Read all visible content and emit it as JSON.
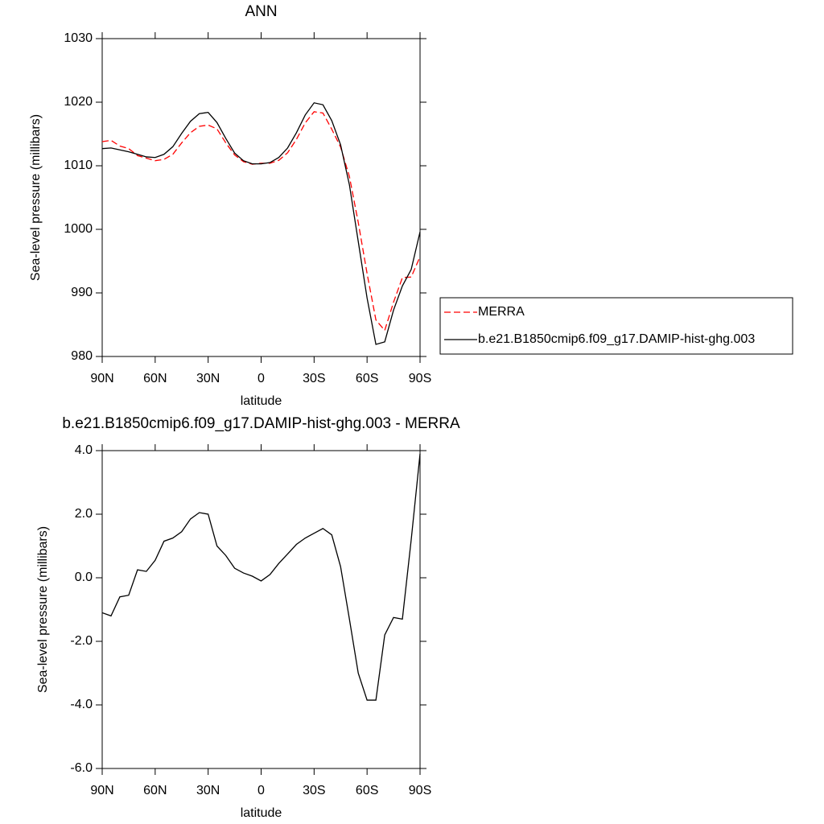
{
  "chart_data": [
    {
      "type": "line",
      "title": "ANN",
      "xlabel": "latitude",
      "ylabel": "Sea-level pressure (millibars)",
      "x": [
        90,
        85,
        80,
        75,
        70,
        65,
        60,
        55,
        50,
        45,
        40,
        35,
        30,
        25,
        20,
        15,
        10,
        5,
        0,
        -5,
        -10,
        -15,
        -20,
        -25,
        -30,
        -35,
        -40,
        -45,
        -50,
        -55,
        -60,
        -65,
        -70,
        -75,
        -80,
        -85,
        -90
      ],
      "xlim": [
        90,
        -90
      ],
      "xticks": [
        {
          "value": 90,
          "label": "90N"
        },
        {
          "value": 60,
          "label": "60N"
        },
        {
          "value": 30,
          "label": "30N"
        },
        0,
        {
          "value": -30,
          "label": "30S"
        },
        {
          "value": -60,
          "label": "60S"
        },
        {
          "value": -90,
          "label": "90S"
        }
      ],
      "ylim": [
        980,
        1030
      ],
      "yticks": [
        980,
        990,
        1000,
        1010,
        1020,
        1030
      ],
      "legend": "right",
      "series": [
        {
          "name": "MERRA",
          "color": "#ff0000",
          "line_style": "dashed",
          "values": [
            1013.8,
            1014.0,
            1013.1,
            1012.7,
            1011.6,
            1011.2,
            1010.8,
            1011.0,
            1011.8,
            1013.6,
            1015.2,
            1016.2,
            1016.4,
            1015.8,
            1013.6,
            1011.7,
            1010.65,
            1010.25,
            1010.4,
            1010.4,
            1010.85,
            1012.05,
            1014.15,
            1016.75,
            1018.5,
            1018.3,
            1015.75,
            1012.95,
            1008.3,
            1001.1,
            993.05,
            985.75,
            984.1,
            988.55,
            992.4,
            992.5,
            995.7
          ]
        },
        {
          "name": "b.e21.B1850cmip6.f09_g17.DAMIP-hist-ghg.003",
          "color": "#000000",
          "line_style": "solid",
          "values": [
            1012.7,
            1012.8,
            1012.5,
            1012.2,
            1011.8,
            1011.4,
            1011.3,
            1011.8,
            1013.0,
            1015.1,
            1017.0,
            1018.2,
            1018.4,
            1016.8,
            1014.3,
            1012.0,
            1010.8,
            1010.3,
            1010.3,
            1010.5,
            1011.3,
            1012.8,
            1015.2,
            1018.0,
            1019.9,
            1019.6,
            1017.1,
            1013.3,
            1007.0,
            998.1,
            989.2,
            981.9,
            982.3,
            987.3,
            991.1,
            993.7,
            999.6
          ]
        }
      ]
    },
    {
      "type": "line",
      "title": "b.e21.B1850cmip6.f09_g17.DAMIP-hist-ghg.003 - MERRA",
      "xlabel": "latitude",
      "ylabel": "Sea-level pressure (millibars)",
      "x": [
        90,
        85,
        80,
        75,
        70,
        65,
        60,
        55,
        50,
        45,
        40,
        35,
        30,
        25,
        20,
        15,
        10,
        5,
        0,
        -5,
        -10,
        -15,
        -20,
        -25,
        -30,
        -35,
        -40,
        -45,
        -50,
        -55,
        -60,
        -65,
        -70,
        -75,
        -80,
        -85,
        -90
      ],
      "xlim": [
        90,
        -90
      ],
      "xticks": [
        {
          "value": 90,
          "label": "90N"
        },
        {
          "value": 60,
          "label": "60N"
        },
        {
          "value": 30,
          "label": "30N"
        },
        0,
        {
          "value": -30,
          "label": "30S"
        },
        {
          "value": -60,
          "label": "60S"
        },
        {
          "value": -90,
          "label": "90S"
        }
      ],
      "ylim": [
        -6,
        4
      ],
      "yticks": [
        {
          "value": -6,
          "label": "-6.0"
        },
        {
          "value": -4,
          "label": "-4.0"
        },
        {
          "value": -2,
          "label": "-2.0"
        },
        {
          "value": 0,
          "label": "0.0"
        },
        {
          "value": 2,
          "label": "2.0"
        },
        {
          "value": 4,
          "label": "4.0"
        }
      ],
      "color": "#000000",
      "values": [
        -1.1,
        -1.2,
        -0.6,
        -0.55,
        0.25,
        0.2,
        0.55,
        1.15,
        1.25,
        1.45,
        1.85,
        2.05,
        2.0,
        1.0,
        0.7,
        0.3,
        0.15,
        0.05,
        -0.1,
        0.1,
        0.45,
        0.75,
        1.05,
        1.25,
        1.4,
        1.55,
        1.35,
        0.35,
        -1.3,
        -3.0,
        -3.85,
        -3.85,
        -1.8,
        -1.25,
        -1.3,
        1.2,
        3.9
      ]
    }
  ]
}
